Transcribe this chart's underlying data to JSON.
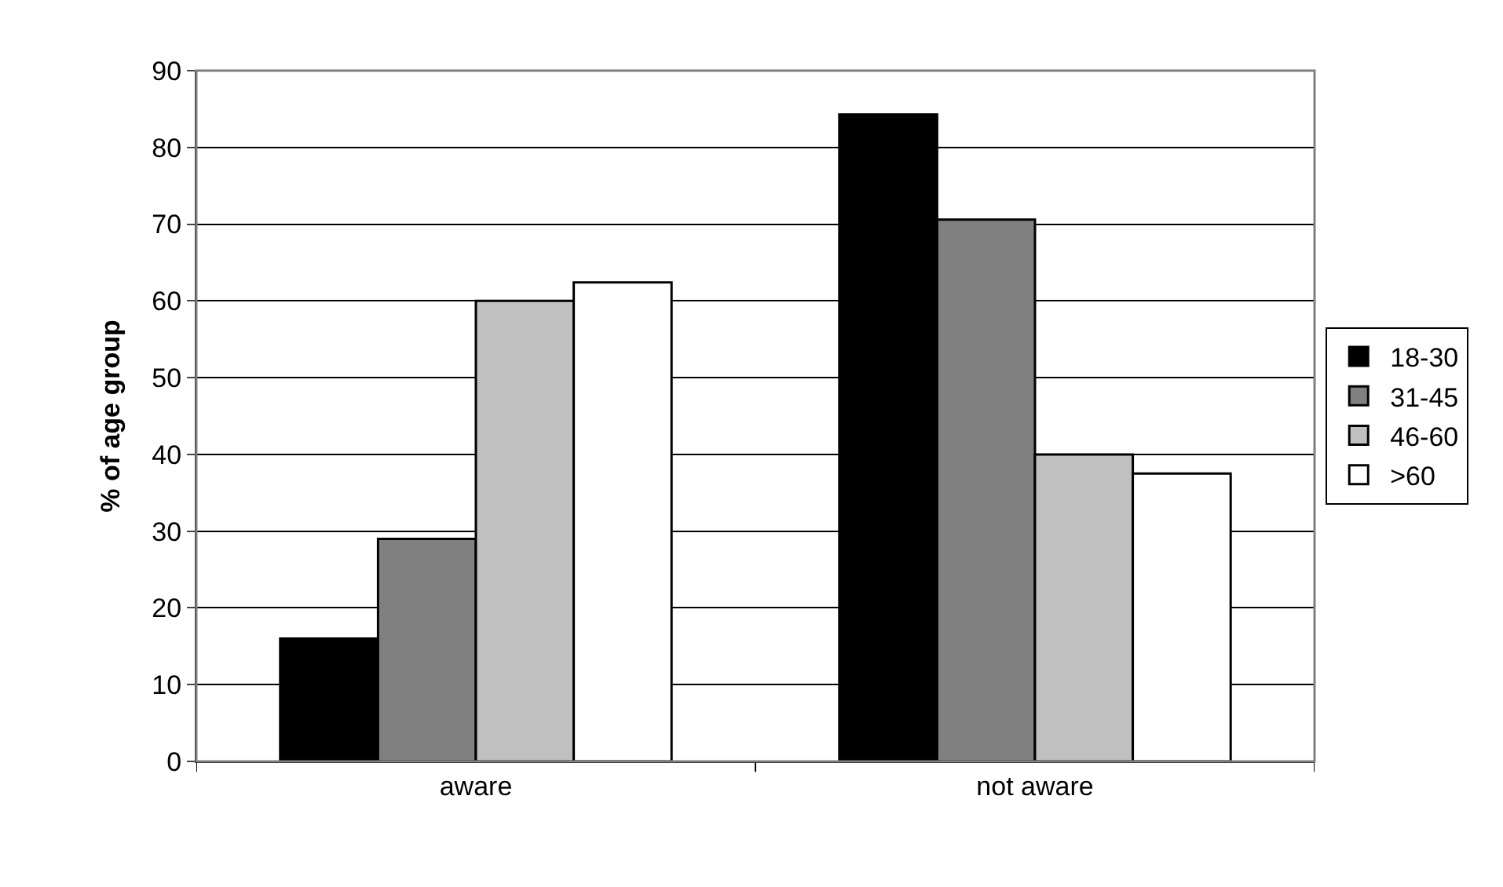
{
  "chart_data": {
    "type": "bar",
    "ylabel": "% of age group",
    "categories": [
      "aware",
      "not aware"
    ],
    "series": [
      {
        "name": "18-30",
        "color": "#000000",
        "values": [
          16,
          84.3
        ]
      },
      {
        "name": "31-45",
        "color": "#808080",
        "values": [
          29,
          70.6
        ]
      },
      {
        "name": "46-60",
        "color": "#c0c0c0",
        "values": [
          60,
          40
        ]
      },
      {
        "name": ">60",
        "color": "#ffffff",
        "values": [
          62.4,
          37.5
        ]
      }
    ],
    "ylim": [
      0,
      90
    ],
    "yticks": [
      0,
      10,
      20,
      30,
      40,
      50,
      60,
      70,
      80,
      90
    ],
    "grid": "y",
    "legend": "right"
  }
}
